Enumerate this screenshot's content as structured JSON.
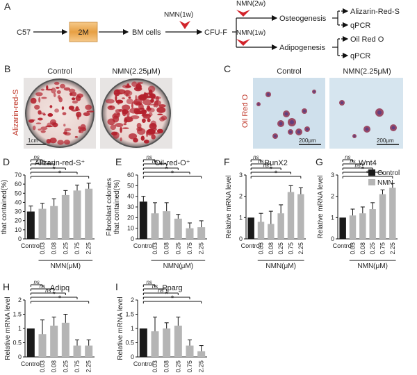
{
  "workflow": {
    "panel_label": "A",
    "c57": "C57",
    "age": "2M",
    "bm_cells": "BM cells",
    "nmn_1w_first": "NMN(1w)",
    "cfu_f": "CFU-F",
    "nmn_2w": "NMN(2w)",
    "nmn_1w_second": "NMN(1w)",
    "osteogenesis": "Osteogenesis",
    "adipogenesis": "Adipogenesis",
    "alizarin": "Alizarin-Red-S",
    "qpcr_1": "qPCR",
    "oil_red": "Oil Red O",
    "qpcr_2": "qPCR"
  },
  "panel_b": {
    "label": "B",
    "stain": "Alizarin-red-S",
    "control": "Control",
    "treated": "NMN(2.25μM)",
    "scale": "1cm"
  },
  "panel_c": {
    "label": "C",
    "stain": "Oil Red O",
    "control": "Control",
    "treated": "NMN(2.25μM)",
    "scale_left": "200μm",
    "scale_right": "200μm"
  },
  "legend": {
    "control": "Control",
    "nmn": "NMN"
  },
  "colors": {
    "control_bar": "#1a1a1a",
    "nmn_bar": "#b5b5b5",
    "stain_red": "#b3202c",
    "oil_bg": "#c8dcea"
  },
  "chart_data": [
    {
      "panel": "D",
      "type": "bar",
      "title": "Alizarin-red-S⁺",
      "ylabel": "Fibroblast colonies that contained(%)",
      "xlabel": "NMN(μM)",
      "categories": [
        "Control",
        "0.03",
        "0.08",
        "0.25",
        "0.75",
        "2.25"
      ],
      "values": [
        30,
        33,
        36,
        48,
        53,
        55
      ],
      "errors": [
        6,
        6,
        8,
        5,
        6,
        6
      ],
      "ylim": [
        0,
        70
      ],
      "yticks": [
        0,
        10,
        20,
        30,
        40,
        50,
        60,
        70
      ],
      "annotations": [
        {
          "to": "0.03",
          "label": "ns"
        },
        {
          "to": "0.08",
          "label": "ns"
        },
        {
          "to": "0.25",
          "label": "*"
        },
        {
          "to": "0.75",
          "label": "*"
        },
        {
          "to": "2.25",
          "label": "*"
        }
      ]
    },
    {
      "panel": "E",
      "type": "bar",
      "title": "Oil-red-O⁺",
      "ylabel": "Fibroblast colonies that contained(%)",
      "xlabel": "NMN(μM)",
      "categories": [
        "Control",
        "0.03",
        "0.08",
        "0.25",
        "0.75",
        "2.25"
      ],
      "values": [
        35,
        24,
        26,
        19,
        10,
        11
      ],
      "errors": [
        5,
        10,
        8,
        4,
        5,
        6
      ],
      "ylim": [
        0,
        60
      ],
      "yticks": [
        0,
        10,
        20,
        30,
        40,
        50,
        60
      ],
      "annotations": [
        {
          "to": "0.03",
          "label": "ns"
        },
        {
          "to": "0.08",
          "label": "ns"
        },
        {
          "to": "0.25",
          "label": "*"
        },
        {
          "to": "0.75",
          "label": "*"
        },
        {
          "to": "2.25",
          "label": "*"
        }
      ]
    },
    {
      "panel": "F",
      "type": "bar",
      "title": "RunX2",
      "ylabel": "Relative mRNA level",
      "xlabel": "NMN(μM)",
      "categories": [
        "Control",
        "0.03",
        "0.08",
        "0.25",
        "0.75",
        "2.25"
      ],
      "values": [
        1.0,
        0.8,
        0.7,
        1.2,
        2.2,
        2.1
      ],
      "errors": [
        0,
        0.4,
        0.6,
        0.4,
        0.3,
        0.3
      ],
      "ylim": [
        0,
        3
      ],
      "yticks": [
        0,
        1,
        2,
        3
      ],
      "annotations": [
        {
          "to": "0.03",
          "label": "ns"
        },
        {
          "to": "0.08",
          "label": "ns"
        },
        {
          "to": "0.25",
          "label": "ns"
        },
        {
          "to": "0.75",
          "label": "*"
        },
        {
          "to": "2.25",
          "label": "*"
        }
      ]
    },
    {
      "panel": "G",
      "type": "bar",
      "title": "Wnt4",
      "ylabel": "Relative mRNA level",
      "xlabel": "NMN(μM)",
      "categories": [
        "Control",
        "0.03",
        "0.08",
        "0.25",
        "0.75",
        "2.25"
      ],
      "values": [
        1.0,
        1.1,
        1.2,
        1.4,
        2.1,
        2.4
      ],
      "errors": [
        0,
        0.3,
        0.3,
        0.3,
        0.2,
        0.2
      ],
      "ylim": [
        0,
        3
      ],
      "yticks": [
        0,
        1,
        2,
        3
      ],
      "annotations": [
        {
          "to": "0.03",
          "label": "ns"
        },
        {
          "to": "0.08",
          "label": "ns"
        },
        {
          "to": "0.25",
          "label": "ns"
        },
        {
          "to": "0.75",
          "label": "*"
        },
        {
          "to": "2.25",
          "label": "*"
        }
      ]
    },
    {
      "panel": "H",
      "type": "bar",
      "title": "Adipq",
      "ylabel": "Relative mRNA level",
      "xlabel": "NMN(μM)",
      "categories": [
        "Control",
        "0.03",
        "0.08",
        "0.25",
        "0.75",
        "2.25"
      ],
      "values": [
        1.0,
        0.8,
        1.1,
        1.2,
        0.4,
        0.4
      ],
      "errors": [
        0,
        0.5,
        0.3,
        0.3,
        0.2,
        0.2
      ],
      "ylim": [
        0,
        2
      ],
      "yticks": [
        0,
        0.5,
        1,
        1.5,
        2
      ],
      "annotations": [
        {
          "to": "0.03",
          "label": "ns"
        },
        {
          "to": "0.08",
          "label": "ns"
        },
        {
          "to": "0.25",
          "label": "ns"
        },
        {
          "to": "0.75",
          "label": "*"
        },
        {
          "to": "2.25",
          "label": "*"
        }
      ]
    },
    {
      "panel": "I",
      "type": "bar",
      "title": "Pparg",
      "ylabel": "Relative mRNA level",
      "xlabel": "NMN(μM)",
      "categories": [
        "Control",
        "0.03",
        "0.08",
        "0.25",
        "0.75",
        "2.25"
      ],
      "values": [
        1.0,
        0.9,
        1.0,
        1.1,
        0.4,
        0.2
      ],
      "errors": [
        0,
        0.5,
        0.2,
        0.3,
        0.2,
        0.2
      ],
      "ylim": [
        0,
        2
      ],
      "yticks": [
        0,
        0.5,
        1,
        1.5,
        2
      ],
      "annotations": [
        {
          "to": "0.03",
          "label": "ns"
        },
        {
          "to": "0.08",
          "label": "ns"
        },
        {
          "to": "0.25",
          "label": "ns"
        },
        {
          "to": "0.75",
          "label": "*"
        },
        {
          "to": "2.25",
          "label": "*"
        }
      ]
    }
  ]
}
